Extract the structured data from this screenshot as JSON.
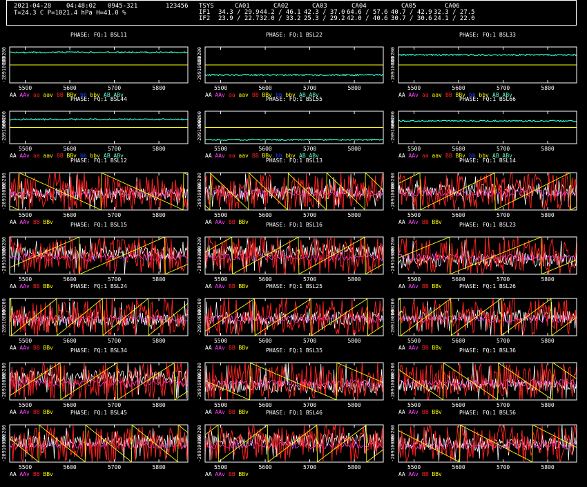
{
  "header": {
    "date": "2021-04-28",
    "time": "04:48:02",
    "scan": "0945-321",
    "code": "123456",
    "weather": "T=24.3 C P=1021.4 hPa H=41.0 %",
    "tsys_label": "TSYS",
    "antennas": [
      "CA01",
      "CA02",
      "CA03",
      "CA04",
      "CA05",
      "CA06"
    ],
    "rows": [
      {
        "label": "IF1",
        "values": [
          "34.3 / 29.9",
          "44.2 / 46.1",
          "42.3 / 37.0",
          "64.6 / 57.6",
          "40.7 / 42.9",
          "32.3 / 27.5"
        ]
      },
      {
        "label": "IF2",
        "values": [
          "23.9 / 22.7",
          "32.0 / 33.2",
          "25.3 / 29.2",
          "42.0 / 40.6",
          "30.7 / 30.6",
          "24.1 / 22.0"
        ]
      }
    ]
  },
  "axis": {
    "x_ticks": [
      "5500",
      "5600",
      "5700",
      "5800"
    ],
    "x_values": [
      5500,
      5600,
      5700,
      5800
    ],
    "xlim": [
      5465,
      5865
    ],
    "y_top_label": "100200",
    "y_bottom_label": "-20910000"
  },
  "colors": {
    "AA": "#ffffff",
    "AAv": "#ff44ff",
    "aa": "#ff2020",
    "aav": "#ffff00",
    "BB": "#ff2020",
    "BBv": "#ffff00",
    "bb": "#2244ff",
    "bbv": "#ffff00",
    "AB": "#66ffcc",
    "ABv": "#66ffcc",
    "auto_line": "#33ffcc",
    "center_line": "#ffff00"
  },
  "legend_auto": [
    "AA",
    "AAv",
    "aa",
    "aav",
    "BB",
    "BBv",
    "bb",
    "bbv",
    "AB",
    "ABv"
  ],
  "legend_cross": [
    "AA",
    "AAv",
    "BB",
    "BBv"
  ],
  "panels": [
    {
      "title": "PHASE: FQ:1  BSL11",
      "kind": "auto",
      "level": 0.15
    },
    {
      "title": "PHASE: FQ:1  BSL22",
      "kind": "auto",
      "level": 0.78
    },
    {
      "title": "PHASE: FQ:1  BSL33",
      "kind": "auto",
      "level": 0.22
    },
    {
      "title": "PHASE: FQ:1  BSL44",
      "kind": "auto",
      "level": 0.25
    },
    {
      "title": "PHASE: FQ:1  BSL55",
      "kind": "auto",
      "level": 0.88
    },
    {
      "title": "PHASE: FQ:1  BSL66",
      "kind": "auto",
      "level": 0.3
    },
    {
      "title": "PHASE: FQ:1  BSL12",
      "kind": "cross",
      "seed": 12
    },
    {
      "title": "PHASE: FQ:1  BSL13",
      "kind": "cross",
      "seed": 13
    },
    {
      "title": "PHASE: FQ:1  BSL14",
      "kind": "cross",
      "seed": 14
    },
    {
      "title": "PHASE: FQ:1  BSL15",
      "kind": "cross",
      "seed": 15
    },
    {
      "title": "PHASE: FQ:1  BSL16",
      "kind": "cross",
      "seed": 16
    },
    {
      "title": "PHASE: FQ:1  BSL23",
      "kind": "cross",
      "seed": 23
    },
    {
      "title": "PHASE: FQ:1  BSL24",
      "kind": "cross",
      "seed": 24
    },
    {
      "title": "PHASE: FQ:1  BSL25",
      "kind": "cross",
      "seed": 25
    },
    {
      "title": "PHASE: FQ:1  BSL26",
      "kind": "cross",
      "seed": 26
    },
    {
      "title": "PHASE: FQ:1  BSL34",
      "kind": "cross",
      "seed": 34
    },
    {
      "title": "PHASE: FQ:1  BSL35",
      "kind": "cross",
      "seed": 35
    },
    {
      "title": "PHASE: FQ:1  BSL36",
      "kind": "cross",
      "seed": 36
    },
    {
      "title": "PHASE: FQ:1  BSL45",
      "kind": "cross",
      "seed": 45
    },
    {
      "title": "PHASE: FQ:1  BSL46",
      "kind": "cross",
      "seed": 46
    },
    {
      "title": "PHASE: FQ:1  BSL56",
      "kind": "cross",
      "seed": 56
    }
  ]
}
